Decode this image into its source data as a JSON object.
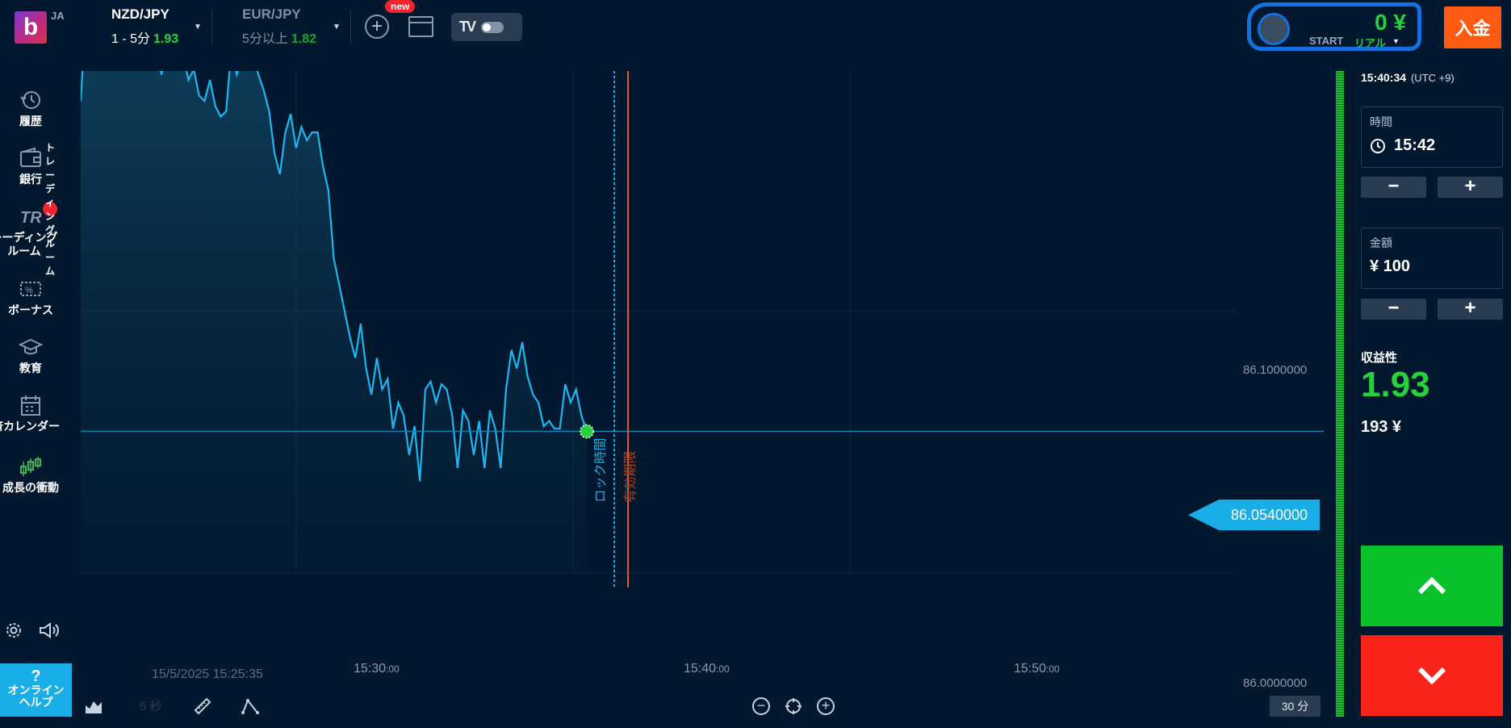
{
  "header": {
    "logo": "b",
    "language": "JA",
    "assets": [
      {
        "pair": "NZD/JPY",
        "duration": "1 - 5分",
        "payout": "1.93"
      },
      {
        "pair": "EUR/JPY",
        "duration": "5分以上",
        "payout": "1.82"
      }
    ],
    "new_badge": "new",
    "account": {
      "balance": "0 ¥",
      "type_label": "START",
      "mode": "リアル"
    },
    "deposit_label": "入金"
  },
  "sidebar": {
    "items": [
      {
        "label": "履歴",
        "icon": "history-icon"
      },
      {
        "label": "銀行",
        "icon": "wallet-icon"
      },
      {
        "label": "トレーディング\nルーム",
        "icon": "trading-room-icon",
        "alert": "!"
      },
      {
        "label": "ボーナス",
        "icon": "bonus-icon"
      },
      {
        "label": "教育",
        "icon": "education-icon"
      },
      {
        "label": "経済カレンダー",
        "icon": "calendar-icon"
      },
      {
        "label": "成長の衝動",
        "icon": "growth-icon"
      }
    ],
    "help_label_line1": "オンライン",
    "help_label_line2": "ヘルプ",
    "help_q": "?"
  },
  "chart": {
    "price_labels": [
      "86.1000000",
      "86.0000000"
    ],
    "current_price": "86.0540000",
    "time_labels": [
      {
        "main": "15:30",
        "sec": ":00"
      },
      {
        "main": "15:40",
        "sec": ":00"
      },
      {
        "main": "15:50",
        "sec": ":00"
      }
    ],
    "start_datetime": "15/5/2025 15:25:35",
    "lock_label": "ロック時間",
    "expiry_label": "有効期限",
    "interval": "5 秒",
    "timeframe": "30 分",
    "colors": {
      "line": "#1eb6f0",
      "lock": "#1aaee8",
      "expiry": "#e2582a"
    }
  },
  "chart_data": {
    "type": "area",
    "x_unit": "time",
    "y_ticks": [
      86.1,
      86.0
    ],
    "current_price": 86.054,
    "lock_time": "15:42",
    "x_ticks": [
      "15:30",
      "15:40",
      "15:50"
    ],
    "values": [
      86.18,
      86.215,
      86.228,
      86.235,
      86.232,
      86.238,
      86.228,
      86.232,
      86.235,
      86.225,
      86.232,
      86.218,
      86.205,
      86.196,
      86.2,
      86.19,
      86.198,
      86.215,
      86.205,
      86.198,
      86.188,
      86.192,
      86.182,
      86.18,
      86.188,
      86.178,
      86.174,
      86.176,
      86.2,
      86.19,
      86.196,
      86.205,
      86.198,
      86.19,
      86.184,
      86.176,
      86.16,
      86.152,
      86.168,
      86.175,
      86.162,
      86.17,
      86.165,
      86.168,
      86.168,
      86.155,
      86.146,
      86.12,
      86.11,
      86.1,
      86.09,
      86.082,
      86.095,
      86.078,
      86.068,
      86.082,
      86.07,
      86.074,
      86.055,
      86.065,
      86.06,
      86.045,
      86.056,
      86.035,
      86.07,
      86.073,
      86.065,
      86.072,
      86.07,
      86.06,
      86.04,
      86.062,
      86.058,
      86.045,
      86.058,
      86.04,
      86.062,
      86.055,
      86.04,
      86.07,
      86.085,
      86.078,
      86.088,
      86.075,
      86.068,
      86.065,
      86.056,
      86.058,
      86.055,
      86.055,
      86.072,
      86.065,
      86.07,
      86.06,
      86.054
    ]
  },
  "panel": {
    "clock": "15:40:34",
    "timezone": "(UTC +9)",
    "time_label": "時間",
    "time_value": "15:42",
    "amount_label": "金額",
    "amount_value": "¥ 100",
    "minus": "−",
    "plus": "+",
    "profit_label": "収益性",
    "profit_value": "1.93",
    "profit_amount": "193 ¥"
  }
}
